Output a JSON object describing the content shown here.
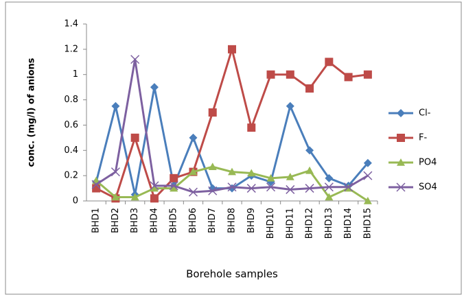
{
  "chart_data": {
    "type": "line",
    "y_label": "conc. (mg/l) of anions",
    "x_label": "Borehole samples",
    "categories": [
      "BHD1",
      "BHD2",
      "BHD3",
      "BHD4",
      "BHD5",
      "BHD6",
      "BHD7",
      "BHD8",
      "BHD9",
      "BHD10",
      "BHD11",
      "BHD12",
      "BHD13",
      "BHD14",
      "BHD15"
    ],
    "series": [
      {
        "name": "Cl-",
        "color": "#4a7ebb",
        "marker": "diamond",
        "values": [
          0.15,
          0.75,
          0.05,
          0.9,
          0.12,
          0.5,
          0.1,
          0.1,
          0.2,
          0.15,
          0.75,
          0.4,
          0.18,
          0.12,
          0.3
        ]
      },
      {
        "name": "F-",
        "color": "#be4b48",
        "marker": "square",
        "values": [
          0.1,
          0.02,
          0.5,
          0.02,
          0.18,
          0.23,
          0.7,
          1.2,
          0.58,
          1.0,
          1.0,
          0.89,
          1.1,
          0.98,
          1.0
        ]
      },
      {
        "name": "PO4",
        "color": "#98b954",
        "marker": "triangle",
        "values": [
          0.16,
          0.03,
          0.03,
          0.1,
          0.1,
          0.23,
          0.27,
          0.23,
          0.22,
          0.18,
          0.19,
          0.24,
          0.03,
          0.1,
          0.0
        ]
      },
      {
        "name": "SO4",
        "color": "#7d60a0",
        "marker": "x",
        "values": [
          0.13,
          0.23,
          1.12,
          0.12,
          0.12,
          0.07,
          0.08,
          0.11,
          0.1,
          0.11,
          0.09,
          0.1,
          0.11,
          0.11,
          0.2
        ]
      }
    ],
    "ylim": [
      0,
      1.4
    ],
    "yticks": [
      0,
      0.2,
      0.4,
      0.6,
      0.8,
      1,
      1.2,
      1.4
    ],
    "legend": "right"
  }
}
